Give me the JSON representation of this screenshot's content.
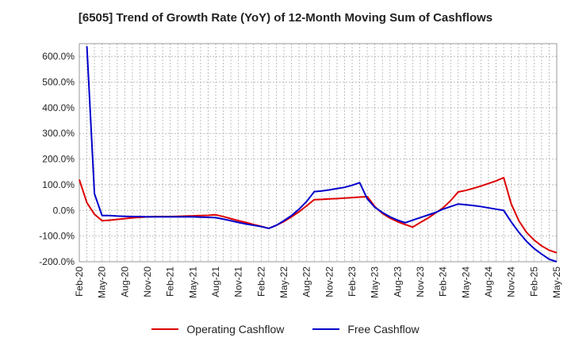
{
  "chart_data": {
    "type": "line",
    "title": "[6505]  Trend of Growth Rate (YoY) of 12-Month Moving Sum of Cashflows",
    "xlabel": "",
    "ylabel": "",
    "ylim": [
      -200,
      650
    ],
    "y_ticks": [
      600,
      500,
      400,
      300,
      200,
      100,
      0,
      -100,
      -200
    ],
    "y_tick_labels": [
      "600.0%",
      "500.0%",
      "400.0%",
      "300.0%",
      "200.0%",
      "100.0%",
      "0.0%",
      "-100.0%",
      "-200.0%"
    ],
    "x_tick_labels": [
      "Feb-20",
      "May-20",
      "Aug-20",
      "Nov-20",
      "Feb-21",
      "May-21",
      "Aug-21",
      "Nov-21",
      "Feb-22",
      "May-22",
      "Aug-22",
      "Nov-22",
      "Feb-23",
      "May-23",
      "Aug-23",
      "Nov-23",
      "Feb-24",
      "May-24",
      "Aug-24",
      "Nov-24",
      "Feb-25",
      "May-25"
    ],
    "x_start": "Feb-20",
    "month_count": 64,
    "grid": true,
    "legend_position": "bottom",
    "series": [
      {
        "name": "Operating Cashflow",
        "color": "#dd0000",
        "values": [
          120,
          30,
          -15,
          -40,
          -38,
          -35,
          -32,
          -29,
          -27,
          -25,
          -24,
          -24,
          -24,
          -23,
          -22,
          -21,
          -20,
          -19,
          -17,
          -24,
          -32,
          -40,
          -47,
          -55,
          -62,
          -70,
          -58,
          -43,
          -25,
          -5,
          18,
          42,
          43,
          45,
          46,
          48,
          50,
          52,
          54,
          15,
          -12,
          -30,
          -44,
          -55,
          -65,
          -47,
          -30,
          -10,
          10,
          38,
          72,
          78,
          86,
          95,
          105,
          115,
          128,
          25,
          -40,
          -85,
          -115,
          -138,
          -155,
          -165
        ]
      },
      {
        "name": "Free Cashflow",
        "color": "#0000cc",
        "values": [
          null,
          640,
          65,
          -20,
          -20,
          -22,
          -23,
          -24,
          -24,
          -25,
          -25,
          -25,
          -25,
          -25,
          -25,
          -25,
          -26,
          -27,
          -28,
          -34,
          -40,
          -47,
          -53,
          -58,
          -63,
          -70,
          -58,
          -40,
          -20,
          5,
          35,
          73,
          76,
          80,
          85,
          90,
          98,
          108,
          45,
          12,
          -8,
          -25,
          -38,
          -48,
          -38,
          -28,
          -18,
          -8,
          5,
          15,
          25,
          22,
          19,
          15,
          10,
          5,
          0,
          -45,
          -85,
          -120,
          -148,
          -170,
          -190,
          -200
        ]
      }
    ]
  },
  "legend": {
    "items": [
      {
        "label": "Operating Cashflow",
        "color": "#dd0000"
      },
      {
        "label": "Free Cashflow",
        "color": "#0000cc"
      }
    ]
  }
}
